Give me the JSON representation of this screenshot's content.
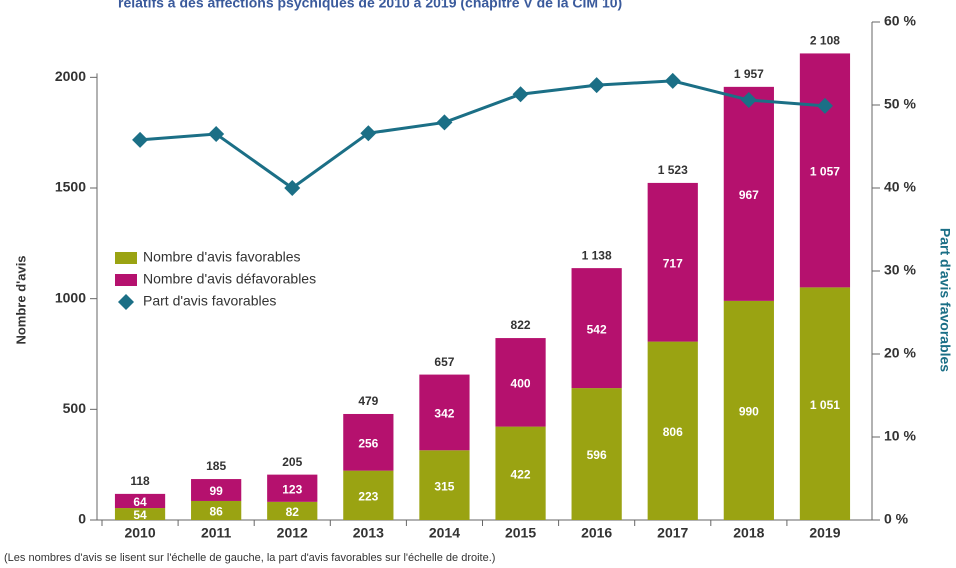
{
  "chart_data": {
    "type": "bar",
    "stacked": true,
    "title": "relatifs à des affections psychiques de 2010 à 2019 (chapitre V de la CIM 10)",
    "y_label": "Nombre d'avis",
    "y2_label": "Part d'avis favorables",
    "note": "(Les nombres d'avis se lisent sur l'échelle de gauche, la part d'avis favorables sur l'échelle de droite.)",
    "categories": [
      "2010",
      "2011",
      "2012",
      "2013",
      "2014",
      "2015",
      "2016",
      "2017",
      "2018",
      "2019"
    ],
    "series": [
      {
        "name": "Nombre d'avis favorables",
        "color": "#9aa312",
        "values": [
          54,
          86,
          82,
          223,
          315,
          422,
          596,
          806,
          990,
          1051
        ],
        "value_labels": [
          "54",
          "86",
          "82",
          "223",
          "315",
          "422",
          "596",
          "806",
          "990",
          "1 051"
        ]
      },
      {
        "name": "Nombre d'avis défavorables",
        "color": "#b5116e",
        "values": [
          64,
          99,
          123,
          256,
          342,
          400,
          542,
          717,
          967,
          1057
        ],
        "value_labels": [
          "64",
          "99",
          "123",
          "256",
          "342",
          "400",
          "542",
          "717",
          "967",
          "1 057"
        ]
      },
      {
        "name": "Part d'avis favorables",
        "color": "#1b6f86",
        "type": "line",
        "axis": "y2",
        "marker": "diamond",
        "values": [
          45.8,
          46.5,
          40.0,
          46.6,
          47.9,
          51.3,
          52.4,
          52.9,
          50.6,
          49.9
        ]
      }
    ],
    "total_labels": [
      "118",
      "185",
      "205",
      "479",
      "657",
      "822",
      "1 138",
      "1 523",
      "1 957",
      "2 108"
    ],
    "ylim": [
      0,
      2250
    ],
    "yticks": [
      0,
      500,
      1000,
      1500,
      2000
    ],
    "y2lim": [
      0,
      60
    ],
    "y2ticks": [
      {
        "value": 0,
        "label": "0 %"
      },
      {
        "value": 10,
        "label": "10 %"
      },
      {
        "value": 20,
        "label": "20 %"
      },
      {
        "value": 30,
        "label": "30 %"
      },
      {
        "value": 40,
        "label": "40 %"
      },
      {
        "value": 50,
        "label": "50 %"
      },
      {
        "value": 60,
        "label": "60 %"
      }
    ],
    "legend": "left"
  }
}
